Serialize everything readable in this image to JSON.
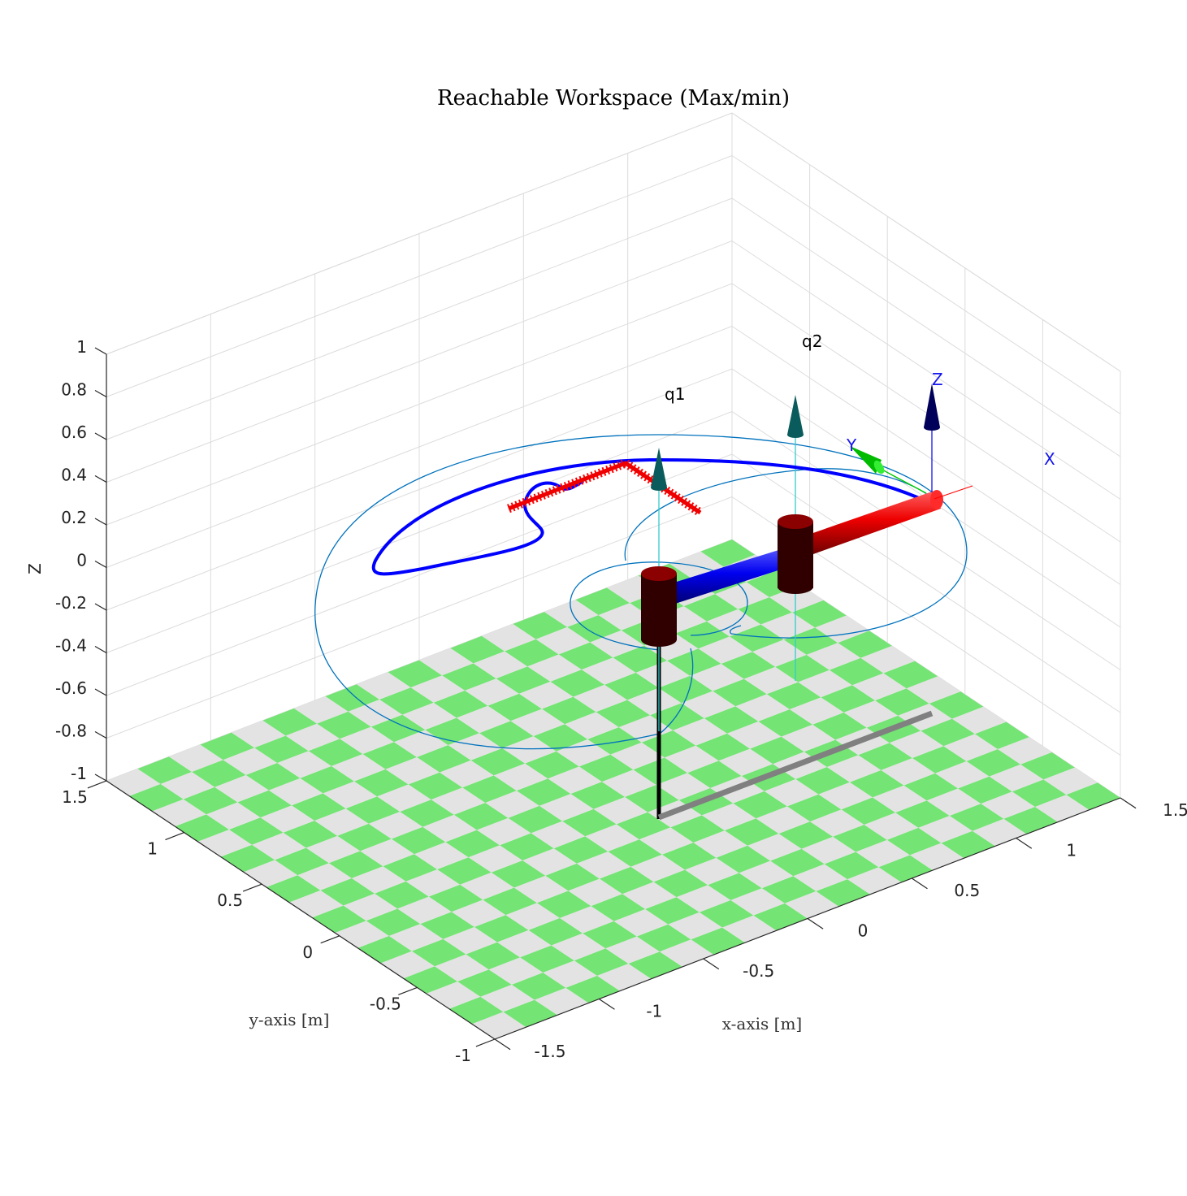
{
  "chart_data": {
    "type": "3d-plot",
    "title": "Reachable Workspace (Max/min)",
    "xlabel": "x-axis [m]",
    "ylabel": "y-axis [m]",
    "zlabel": "Z",
    "xlim": [
      -1.5,
      1.5
    ],
    "ylim": [
      -1,
      1.5
    ],
    "zlim": [
      -1,
      1
    ],
    "x_ticks": [
      "-1.5",
      "-1",
      "-0.5",
      "0",
      "0.5",
      "1",
      "1.5"
    ],
    "y_ticks": [
      "-1",
      "-0.5",
      "0",
      "0.5",
      "1",
      "1.5"
    ],
    "z_ticks": [
      "-1",
      "-0.8",
      "-0.6",
      "-0.4",
      "-0.2",
      "0",
      "0.2",
      "0.4",
      "0.6",
      "0.8",
      "1"
    ],
    "grid": true,
    "annotations": [
      {
        "text": "q1"
      },
      {
        "text": "q2"
      }
    ],
    "tool_frame_labels": [
      "X",
      "Y",
      "Z"
    ],
    "colors": {
      "floor_green": "#74e474",
      "floor_gray": "#e3e3e3",
      "link1": "#0000ee",
      "link2": "#ee0000",
      "joint": "#8b0000",
      "trajectory": "#0000ff",
      "trail": "#ff0000",
      "workspace": "#0072bd"
    }
  }
}
